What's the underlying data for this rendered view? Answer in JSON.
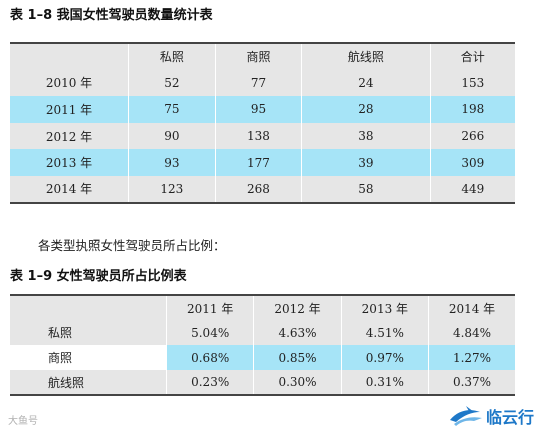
{
  "table1": {
    "caption": "表 1–8  我国女性驾驶员数量统计表",
    "headers": [
      "",
      "私照",
      "商照",
      "航线照",
      "合计"
    ],
    "rows": [
      [
        "2010 年",
        "52",
        "77",
        "24",
        "153"
      ],
      [
        "2011 年",
        "75",
        "95",
        "28",
        "198"
      ],
      [
        "2012 年",
        "90",
        "138",
        "38",
        "266"
      ],
      [
        "2013 年",
        "93",
        "177",
        "39",
        "309"
      ],
      [
        "2014 年",
        "123",
        "268",
        "58",
        "449"
      ]
    ]
  },
  "note": "各类型执照女性驾驶员所占比例：",
  "table2": {
    "caption": "表 1–9  女性驾驶员所占比例表",
    "headers": [
      "",
      "2011 年",
      "2012 年",
      "2013 年",
      "2014 年"
    ],
    "rows": [
      [
        "私照",
        "5.04%",
        "4.63%",
        "4.51%",
        "4.84%"
      ],
      [
        "商照",
        "0.68%",
        "0.85%",
        "0.97%",
        "1.27%"
      ],
      [
        "航线照",
        "0.23%",
        "0.30%",
        "0.31%",
        "0.37%"
      ]
    ]
  },
  "watermark": {
    "left_text": "大鱼号",
    "logo_text": "临云行",
    "logo_icon": "airplane-swoosh-icon",
    "accent_color": "#1e78c8"
  }
}
